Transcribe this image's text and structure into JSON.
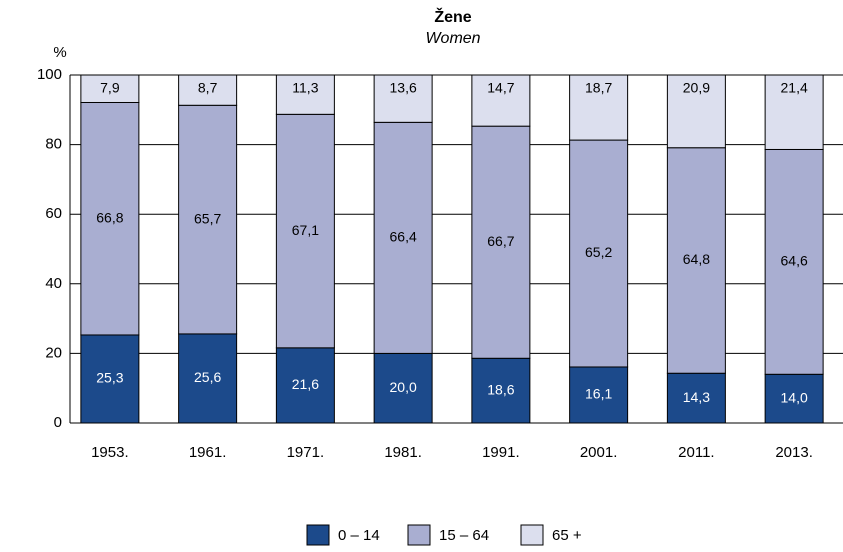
{
  "chart_data": {
    "type": "stacked_bar",
    "title": "Žene",
    "subtitle": "Women",
    "y_label": "%",
    "categories": [
      "1953.",
      "1961.",
      "1971.",
      "1981.",
      "1991.",
      "2001.",
      "2011.",
      "2013."
    ],
    "series": [
      {
        "name": "0 – 14",
        "color": "#1c4a8b",
        "label_color": "#ffffff",
        "values": [
          25.3,
          25.6,
          21.6,
          20.0,
          18.6,
          16.1,
          14.3,
          14.0
        ],
        "value_labels": [
          "25,3",
          "25,6",
          "21,6",
          "20,0",
          "18,6",
          "16,1",
          "14,3",
          "14,0"
        ]
      },
      {
        "name": "15 – 64",
        "color": "#a9aed1",
        "label_color": "#000000",
        "values": [
          66.8,
          65.7,
          67.1,
          66.4,
          66.7,
          65.2,
          64.8,
          64.6
        ],
        "value_labels": [
          "66,8",
          "65,7",
          "67,1",
          "66,4",
          "66,7",
          "65,2",
          "64,8",
          "64,6"
        ]
      },
      {
        "name": "65 +",
        "color": "#dcdfee",
        "label_color": "#000000",
        "values": [
          7.9,
          8.7,
          11.3,
          13.6,
          14.7,
          18.7,
          20.9,
          21.4
        ],
        "value_labels": [
          "7,9",
          "8,7",
          "11,3",
          "13,6",
          "14,7",
          "18,7",
          "20,9",
          "21,4"
        ]
      }
    ],
    "ylim": [
      0,
      100
    ],
    "yticks": [
      0,
      20,
      40,
      60,
      80,
      100
    ],
    "grid": true,
    "legend": "bottom"
  }
}
